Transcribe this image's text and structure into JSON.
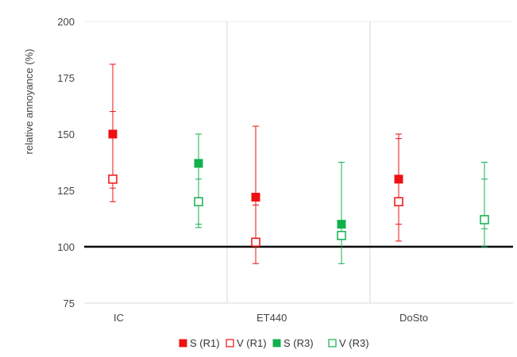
{
  "chart_data": {
    "type": "scatter",
    "title": "",
    "xlabel": "",
    "ylabel": "relative annoyance (%)",
    "ylim": [
      75,
      200
    ],
    "yticks": [
      75,
      100,
      125,
      150,
      175,
      200
    ],
    "reference_line": 100,
    "categories": [
      "IC",
      "ET440",
      "DoSto"
    ],
    "grid": "vertical separators between categories",
    "legend_position": "bottom",
    "series": [
      {
        "name": "S (R1)",
        "marker": "filled-square",
        "color": "#ee1111",
        "values": [
          150,
          122,
          130
        ],
        "err_high": [
          181,
          153.5,
          150
        ],
        "err_low": [
          120,
          92.5,
          102.5
        ],
        "inner_high": [
          160,
          118.5,
          148
        ],
        "inner_low": [
          126,
          118.5,
          110
        ]
      },
      {
        "name": "V (R1)",
        "marker": "open-square",
        "color": "#ee1111",
        "values": [
          130,
          102,
          120
        ]
      },
      {
        "name": "S (R3)",
        "marker": "filled-square",
        "color": "#11b04f",
        "values": [
          137,
          110,
          112
        ],
        "err_high": [
          150,
          137.5,
          137.5
        ],
        "err_low": [
          108.5,
          92.5,
          100
        ],
        "inner_high": [
          130,
          137.5,
          130
        ],
        "inner_low": [
          110,
          105,
          108
        ]
      },
      {
        "name": "V (R3)",
        "marker": "open-square",
        "color": "#11b04f",
        "values": [
          120,
          105,
          112
        ]
      }
    ]
  }
}
